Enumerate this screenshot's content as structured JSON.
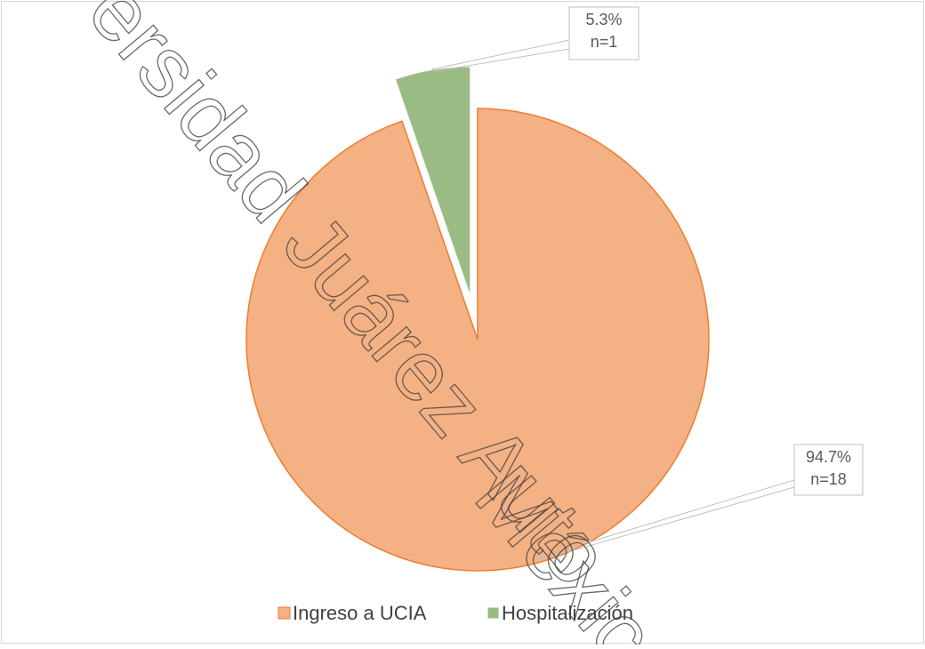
{
  "chart_data": {
    "type": "pie",
    "categories": [
      "Ingreso a UCIA",
      "Hospitalización"
    ],
    "values": [
      94.7,
      5.3
    ],
    "value_labels": [
      "94.7%",
      "5.3%"
    ],
    "counts": [
      18,
      1
    ],
    "count_labels": [
      "n=18",
      "n=1"
    ],
    "colors": [
      "#f4b183",
      "#9bbb85"
    ],
    "legend": "bottom",
    "watermark": [
      "ersidad Juárez Auto",
      "Méxic"
    ]
  }
}
